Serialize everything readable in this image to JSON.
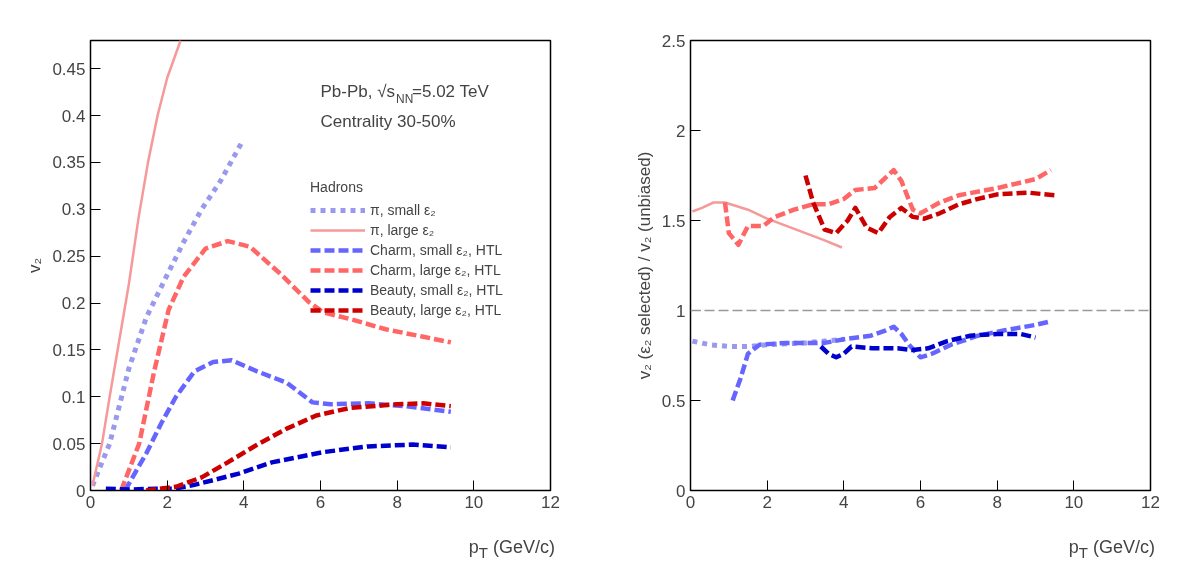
{
  "chart_data": [
    {
      "type": "line",
      "xlabel": "p$_{T}$ (GeV/c)",
      "ylabel": "v₂",
      "xlim": [
        0,
        12
      ],
      "ylim": [
        0,
        0.48
      ],
      "xticks": [
        0,
        2,
        4,
        6,
        8,
        10,
        12
      ],
      "yticks": [
        0,
        0.05,
        0.1,
        0.15,
        0.2,
        0.25,
        0.3,
        0.35,
        0.4,
        0.45
      ],
      "legend": "top right",
      "legend_title": "Hadrons",
      "grid": false,
      "annotations": [
        "Pb-Pb, √s$_{NN}$=5.02 TeV",
        "Centrality 30-50%"
      ],
      "series": [
        {
          "name": "π, small ε₂",
          "color": "#9999ee",
          "line_style": "dotted",
          "x": [
            0.05,
            0.5,
            1.0,
            1.46,
            1.94,
            2.43,
            2.9,
            3.39,
            3.97
          ],
          "values": [
            0.005,
            0.05,
            0.13,
            0.185,
            0.225,
            0.265,
            0.3,
            0.33,
            0.373
          ]
        },
        {
          "name": "π, large ε₂",
          "color": "#f59999",
          "line_style": "solid",
          "x": [
            0.05,
            0.3,
            0.5,
            0.75,
            1.0,
            1.25,
            1.5,
            1.75,
            2.0,
            2.35
          ],
          "values": [
            0.005,
            0.05,
            0.1,
            0.16,
            0.22,
            0.29,
            0.35,
            0.4,
            0.44,
            0.48
          ]
        },
        {
          "name": "Charm, small ε₂, HTL",
          "color": "#6666ff",
          "line_style": "dashed",
          "x": [
            0.9,
            1.46,
            1.85,
            2.23,
            2.71,
            3.2,
            3.68,
            4.35,
            5.12,
            5.79,
            6.27,
            7.24,
            8.2,
            9.4
          ],
          "values": [
            0.0,
            0.04,
            0.072,
            0.1,
            0.127,
            0.137,
            0.139,
            0.127,
            0.115,
            0.094,
            0.092,
            0.093,
            0.09,
            0.084
          ]
        },
        {
          "name": "Charm, large ε₂, HTL",
          "color": "#ff6666",
          "line_style": "dashed",
          "x": [
            0.8,
            1.27,
            1.66,
            2.04,
            2.43,
            3.0,
            3.58,
            4.16,
            4.93,
            5.7,
            6.08,
            6.85,
            7.7,
            8.68,
            9.4
          ],
          "values": [
            0.0,
            0.05,
            0.127,
            0.193,
            0.228,
            0.258,
            0.266,
            0.26,
            0.232,
            0.201,
            0.19,
            0.182,
            0.172,
            0.164,
            0.158
          ]
        },
        {
          "name": "Beauty, small ε₂, HTL",
          "color": "#0000cc",
          "line_style": "dashed",
          "x": [
            0.4,
            1.0,
            1.7,
            2.2,
            2.71,
            3.87,
            4.73,
            6.08,
            7.24,
            8.4,
            9.4
          ],
          "values": [
            0.002,
            0.001,
            0.002,
            0.002,
            0.006,
            0.018,
            0.03,
            0.041,
            0.047,
            0.049,
            0.046
          ]
        },
        {
          "name": "Beauty, large ε₂, HTL",
          "color": "#cc0000",
          "line_style": "dashed",
          "x": [
            1.45,
            2.23,
            2.9,
            3.58,
            4.35,
            5.12,
            5.89,
            6.76,
            8.0,
            8.68,
            9.4
          ],
          "values": [
            0.0,
            0.004,
            0.014,
            0.03,
            0.049,
            0.066,
            0.08,
            0.088,
            0.092,
            0.093,
            0.09
          ]
        }
      ]
    },
    {
      "type": "line",
      "xlabel": "p$_{T}$ (GeV/c)",
      "ylabel": "v₂ (ε₂ selected) / v₂ (unbiased)",
      "xlim": [
        0,
        12
      ],
      "ylim": [
        0,
        2.5
      ],
      "xticks": [
        0,
        2,
        4,
        6,
        8,
        10,
        12
      ],
      "yticks": [
        0,
        0.5,
        1,
        1.5,
        2,
        2.5
      ],
      "grid": false,
      "ref_lines": [
        {
          "axis": "y",
          "value": 1,
          "color": "#999999",
          "line_style": "dashed"
        }
      ],
      "series": [
        {
          "color": "#9999ee",
          "line_style": "dotted",
          "x": [
            0.05,
            0.5,
            1.0,
            1.5,
            2.0,
            2.5,
            3.0,
            3.5,
            4.0
          ],
          "values": [
            0.83,
            0.81,
            0.8,
            0.8,
            0.81,
            0.815,
            0.82,
            0.83,
            0.84
          ]
        },
        {
          "color": "#f59999",
          "line_style": "solid",
          "x": [
            0.05,
            0.3,
            0.6,
            0.9,
            1.5,
            2.0,
            2.5,
            3.0,
            3.5,
            3.95
          ],
          "values": [
            1.55,
            1.57,
            1.6,
            1.6,
            1.56,
            1.51,
            1.47,
            1.43,
            1.39,
            1.35
          ]
        },
        {
          "color": "#6666ff",
          "line_style": "dashed",
          "x": [
            1.1,
            1.3,
            1.5,
            1.8,
            2.5,
            3.5,
            4.0,
            4.7,
            5.1,
            5.3,
            5.5,
            5.7,
            6.0,
            6.3,
            6.8,
            7.5,
            8.2,
            9.0,
            9.4
          ],
          "values": [
            0.5,
            0.62,
            0.76,
            0.81,
            0.82,
            0.82,
            0.84,
            0.86,
            0.89,
            0.91,
            0.87,
            0.81,
            0.74,
            0.76,
            0.81,
            0.86,
            0.89,
            0.92,
            0.94
          ]
        },
        {
          "color": "#ff6666",
          "line_style": "dashed",
          "x": [
            0.9,
            1.0,
            1.25,
            1.5,
            1.9,
            2.2,
            2.7,
            3.2,
            3.6,
            4.0,
            4.3,
            4.8,
            5.3,
            5.5,
            5.8,
            6.0,
            6.5,
            7.0,
            8.0,
            9.0,
            9.4
          ],
          "values": [
            1.6,
            1.43,
            1.365,
            1.47,
            1.47,
            1.52,
            1.56,
            1.59,
            1.59,
            1.62,
            1.67,
            1.68,
            1.78,
            1.72,
            1.56,
            1.54,
            1.6,
            1.64,
            1.68,
            1.73,
            1.78
          ]
        },
        {
          "color": "#0000cc",
          "line_style": "dashed",
          "x": [
            3.4,
            3.6,
            3.8,
            4.0,
            4.2,
            4.75,
            5.4,
            5.8,
            6.2,
            6.7,
            7.3,
            8.0,
            8.6,
            9.0
          ],
          "values": [
            0.8,
            0.76,
            0.74,
            0.76,
            0.8,
            0.79,
            0.79,
            0.78,
            0.79,
            0.83,
            0.86,
            0.87,
            0.87,
            0.85
          ]
        },
        {
          "color": "#cc0000",
          "line_style": "dashed",
          "x": [
            3.0,
            3.2,
            3.5,
            3.8,
            4.1,
            4.3,
            4.6,
            4.9,
            5.2,
            5.5,
            5.8,
            6.1,
            6.5,
            7.0,
            7.5,
            8.0,
            8.8,
            9.5
          ],
          "values": [
            1.75,
            1.6,
            1.45,
            1.43,
            1.5,
            1.57,
            1.46,
            1.43,
            1.52,
            1.57,
            1.52,
            1.51,
            1.54,
            1.59,
            1.62,
            1.645,
            1.655,
            1.64
          ]
        }
      ]
    }
  ]
}
